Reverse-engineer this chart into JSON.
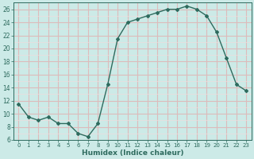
{
  "x": [
    0,
    1,
    2,
    3,
    4,
    5,
    6,
    7,
    8,
    9,
    10,
    11,
    12,
    13,
    14,
    15,
    16,
    17,
    18,
    19,
    20,
    21,
    22,
    23
  ],
  "y": [
    11.5,
    9.5,
    9.0,
    9.5,
    8.5,
    8.5,
    7.0,
    6.5,
    8.5,
    14.5,
    21.5,
    24.0,
    24.5,
    25.0,
    25.5,
    26.0,
    26.0,
    26.5,
    26.0,
    25.0,
    22.5,
    18.5,
    14.5,
    13.5
  ],
  "line_color": "#2e6b5e",
  "bg_color": "#cceae7",
  "major_grid_color": "#ddbbbb",
  "minor_grid_color": "#eedddd",
  "xlabel": "Humidex (Indice chaleur)",
  "ylim": [
    6,
    27
  ],
  "xlim": [
    -0.5,
    23.5
  ],
  "yticks": [
    6,
    8,
    10,
    12,
    14,
    16,
    18,
    20,
    22,
    24,
    26
  ],
  "xticks": [
    0,
    1,
    2,
    3,
    4,
    5,
    6,
    7,
    8,
    9,
    10,
    11,
    12,
    13,
    14,
    15,
    16,
    17,
    18,
    19,
    20,
    21,
    22,
    23
  ]
}
